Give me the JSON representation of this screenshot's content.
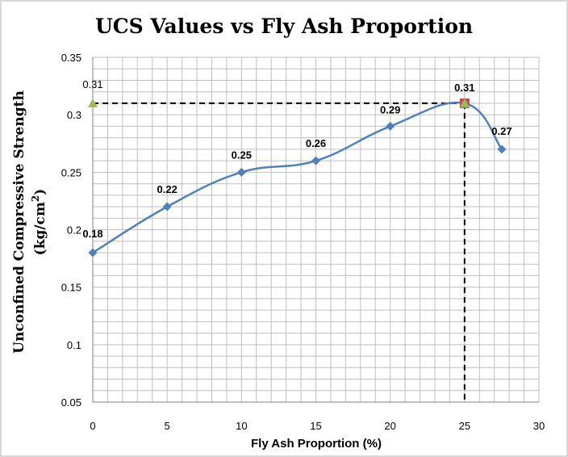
{
  "chart_data": {
    "type": "scatter",
    "title": "UCS Values vs Fly Ash Proportion",
    "xlabel": "Fly Ash Proportion  (%)",
    "ylabel_line1": "Unconfined Compressive Strength",
    "ylabel_line2_pre": "(kg/cm",
    "ylabel_line2_sup": "2",
    "ylabel_line2_post": ")",
    "xlim": [
      0,
      30
    ],
    "ylim": [
      0.05,
      0.35
    ],
    "x_ticks": [
      "0",
      "5",
      "10",
      "15",
      "20",
      "25",
      "30"
    ],
    "y_ticks": [
      "0.05",
      "0.1",
      "0.15",
      "0.2",
      "0.25",
      "0.3",
      "0.35"
    ],
    "grid": true,
    "series": [
      {
        "color": "#4f81bd",
        "x": [
          0,
          5,
          10,
          15,
          20,
          25,
          27.5
        ],
        "y": [
          0.18,
          0.22,
          0.25,
          0.26,
          0.29,
          0.31,
          0.27
        ],
        "labels": [
          "0.18",
          "0.22",
          "0.25",
          "0.26",
          "0.29",
          "0.31",
          "0.27"
        ]
      }
    ],
    "annotations": [
      {
        "marker": "triangle",
        "color": "#9bbb59",
        "x": 0,
        "y": 0.31,
        "label": "0.31"
      },
      {
        "marker": "square",
        "color": "#c0504d",
        "x": 25,
        "y": 0.31
      },
      {
        "marker": "triangle",
        "color": "#9bbb59",
        "x": 25,
        "y": 0.31
      }
    ],
    "guide_lines": {
      "style": "dashed",
      "color": "#000000",
      "x": 25,
      "y": 0.31
    }
  }
}
